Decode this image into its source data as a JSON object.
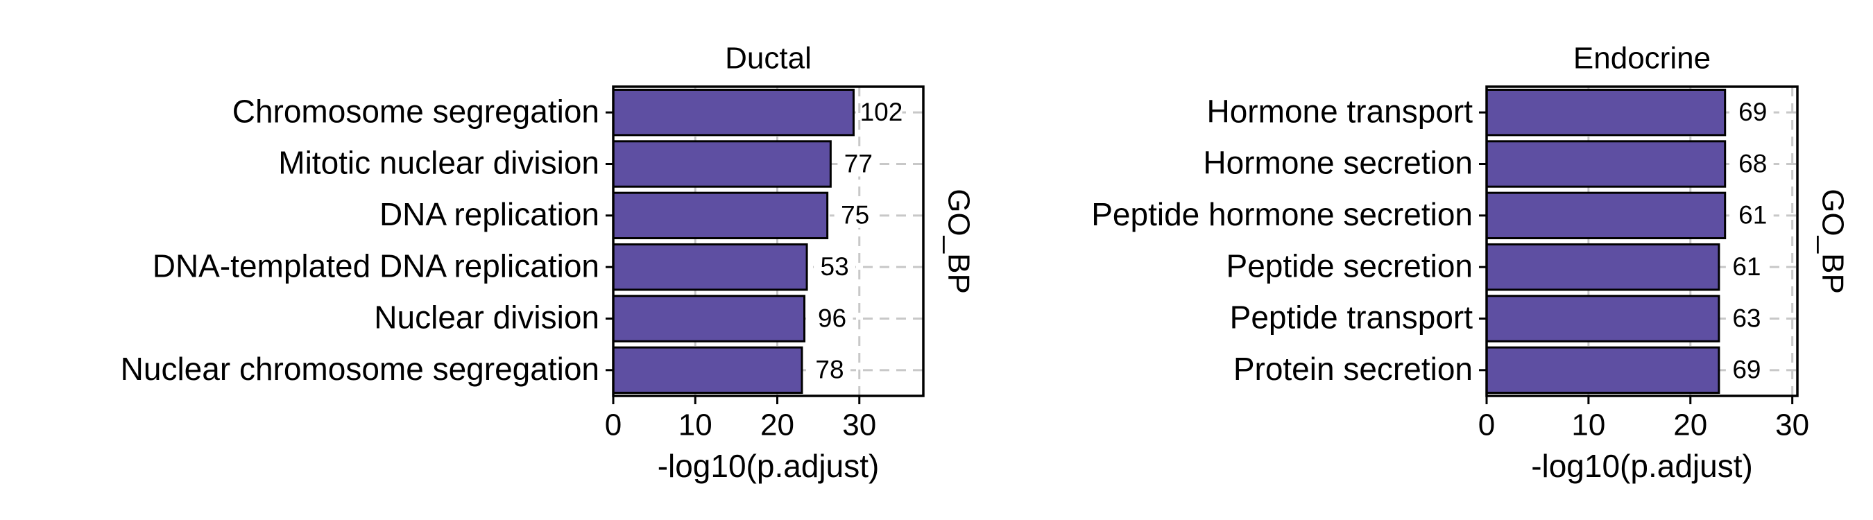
{
  "chart_data": [
    {
      "type": "bar",
      "orientation": "horizontal",
      "title": "Ductal",
      "facet": "GO_BP",
      "xlabel": "-log10(p.adjust)",
      "categories": [
        "Chromosome segregation",
        "Mitotic nuclear division",
        "DNA replication",
        "DNA-templated DNA replication",
        "Nuclear division",
        "Nuclear chromosome segregation"
      ],
      "values": [
        29.3,
        26.5,
        26.1,
        23.6,
        23.3,
        23.0
      ],
      "counts": [
        102,
        77,
        75,
        53,
        96,
        78
      ],
      "color": "#5e4fa2",
      "xlim": [
        0,
        37.8
      ],
      "xticks": [
        0,
        10,
        20,
        30
      ],
      "grid": true
    },
    {
      "type": "bar",
      "orientation": "horizontal",
      "title": "Endocrine",
      "facet": "GO_BP",
      "xlabel": "-log10(p.adjust)",
      "categories": [
        "Hormone transport",
        "Hormone secretion",
        "Peptide hormone secretion",
        "Peptide secretion",
        "Peptide transport",
        "Protein secretion"
      ],
      "values": [
        23.4,
        23.4,
        23.4,
        22.8,
        22.8,
        22.8
      ],
      "counts": [
        69,
        68,
        61,
        61,
        63,
        69
      ],
      "color": "#5e4fa2",
      "xlim": [
        0,
        30.5
      ],
      "xticks": [
        0,
        10,
        20,
        30
      ],
      "grid": true
    }
  ]
}
